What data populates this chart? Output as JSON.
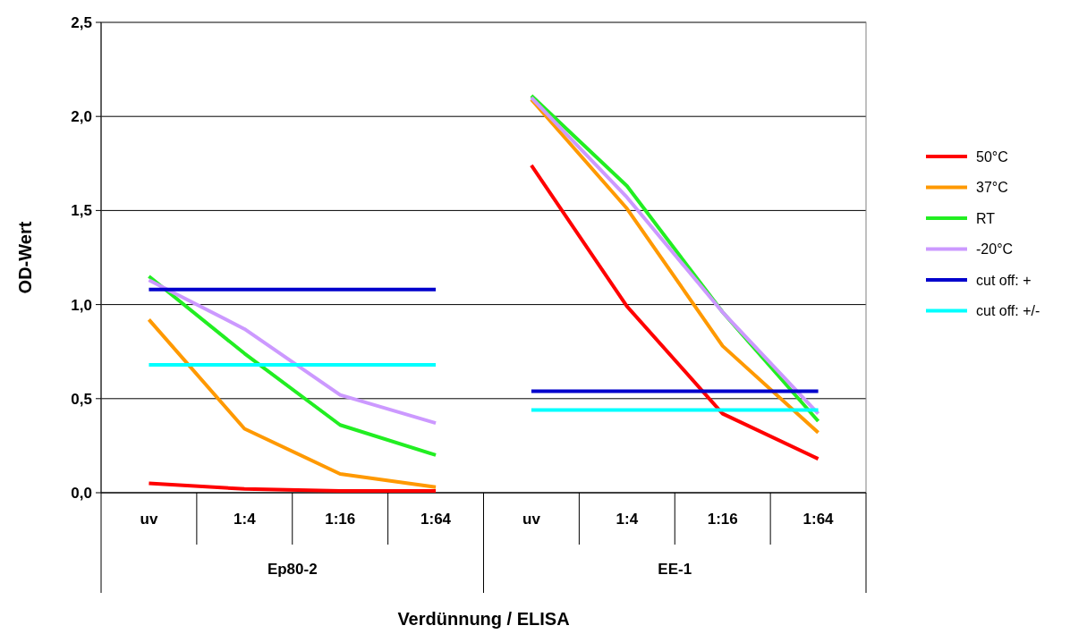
{
  "chart_data": {
    "type": "line",
    "xlabel": "Verdünnung / ELISA",
    "ylabel": "OD-Wert",
    "categories": [
      "uv",
      "1:4",
      "1:16",
      "1:64",
      "uv",
      "1:4",
      "1:16",
      "1:64"
    ],
    "annotations": [
      "Ep80-2",
      "EE-1"
    ],
    "series": [
      {
        "name": "50°C",
        "color": "#ff0000",
        "values": [
          0.05,
          0.02,
          0.01,
          0.01,
          1.74,
          0.99,
          0.42,
          0.18
        ]
      },
      {
        "name": "37°C",
        "color": "#ff9900",
        "values": [
          0.92,
          0.34,
          0.1,
          0.03,
          2.09,
          1.51,
          0.78,
          0.32
        ]
      },
      {
        "name": "RT",
        "color": "#22ee22",
        "values": [
          1.15,
          0.74,
          0.36,
          0.2,
          2.11,
          1.63,
          0.96,
          0.38
        ]
      },
      {
        "name": "-20°C",
        "color": "#cc99ff",
        "values": [
          1.13,
          0.87,
          0.52,
          0.37,
          2.1,
          1.57,
          0.96,
          0.42
        ]
      },
      {
        "name": "cut off: +",
        "color": "#0000cc",
        "values": [
          1.08,
          1.08,
          1.08,
          1.08,
          0.54,
          0.54,
          0.54,
          0.54
        ]
      },
      {
        "name": "cut off: +/-",
        "color": "#00ffff",
        "values": [
          0.68,
          0.68,
          0.68,
          0.68,
          0.44,
          0.44,
          0.44,
          0.44
        ]
      }
    ],
    "ylim": [
      0,
      2.5
    ],
    "yticks": [
      {
        "value": 0,
        "label": "0,0"
      },
      {
        "value": 0.5,
        "label": "0,5"
      },
      {
        "value": 1,
        "label": "1,0"
      },
      {
        "value": 1.5,
        "label": "1,5"
      },
      {
        "value": 2,
        "label": "2,0"
      },
      {
        "value": 2.5,
        "label": "2,5"
      }
    ],
    "grid": "y",
    "legend": "right",
    "marker": "none",
    "line_style": "solid"
  }
}
